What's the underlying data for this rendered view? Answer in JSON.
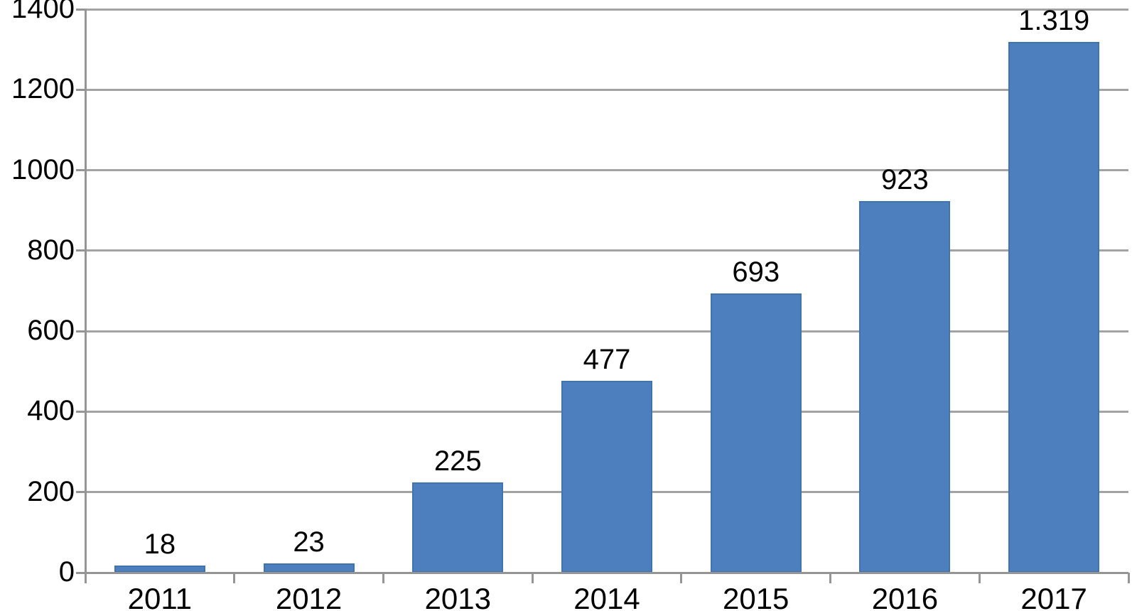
{
  "chart_data": {
    "type": "bar",
    "categories": [
      "2011",
      "2012",
      "2013",
      "2014",
      "2015",
      "2016",
      "2017"
    ],
    "values": [
      18,
      23,
      225,
      477,
      693,
      923,
      1319
    ],
    "value_labels": [
      "18",
      "23",
      "225",
      "477",
      "693",
      "923",
      "1.319"
    ],
    "title": "",
    "xlabel": "",
    "ylabel": "",
    "ylim": [
      0,
      1400
    ],
    "yticks": [
      0,
      200,
      400,
      600,
      800,
      1000,
      1200,
      1400
    ],
    "ytick_labels": [
      "0",
      "200",
      "400",
      "600",
      "800",
      "1000",
      "1200",
      "1400"
    ],
    "grid": true,
    "legend": false,
    "colors": {
      "bar_fill": "#4d7fbe",
      "bar_border": "#4173ad",
      "gridline": "#a3a3a3",
      "axis": "#959595",
      "label": "#000000",
      "background": "#ffffff"
    }
  }
}
